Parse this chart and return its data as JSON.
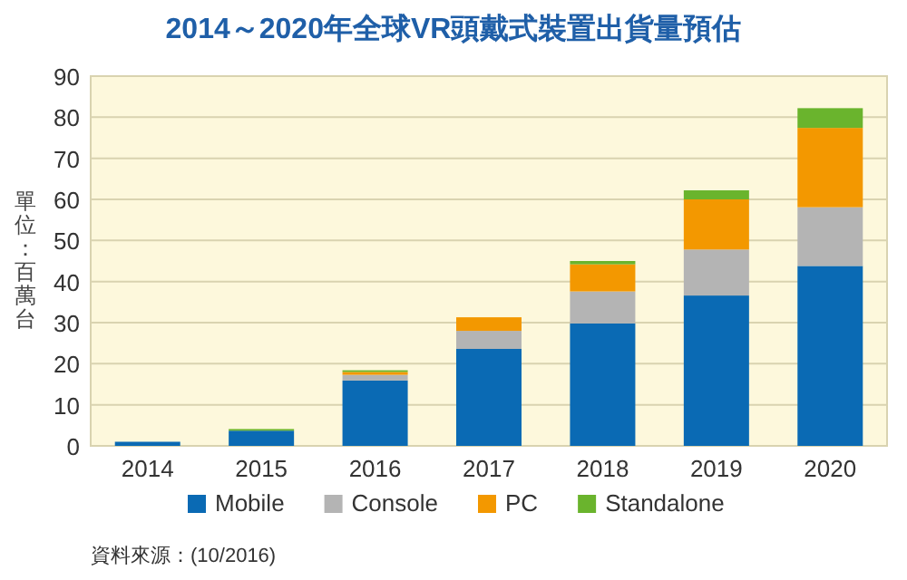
{
  "chart_data": {
    "type": "bar",
    "stacked": true,
    "title": "2014～2020年全球VR頭戴式裝置出貨量預估",
    "ylabel": "單位：百萬台",
    "categories": [
      "2014",
      "2015",
      "2016",
      "2017",
      "2018",
      "2019",
      "2020"
    ],
    "series": [
      {
        "name": "Mobile",
        "color": "#0a6ab4",
        "values": [
          1.0,
          3.7,
          15.9,
          23.6,
          29.8,
          36.6,
          43.8
        ]
      },
      {
        "name": "Console",
        "color": "#b4b4b4",
        "values": [
          0,
          0,
          1.4,
          4.4,
          7.8,
          11.2,
          14.3
        ]
      },
      {
        "name": "PC",
        "color": "#f39800",
        "values": [
          0,
          0,
          0.7,
          3.3,
          6.6,
          12.2,
          19.3
        ]
      },
      {
        "name": "Standalone",
        "color": "#6ab42d",
        "values": [
          0,
          0.4,
          0.4,
          0,
          0.8,
          2.2,
          4.8
        ]
      }
    ],
    "ylim": [
      0,
      90
    ],
    "yticks": [
      0,
      10,
      20,
      30,
      40,
      50,
      60,
      70,
      80,
      90
    ],
    "grid": "y",
    "legend": "bottom",
    "annotations": [
      "資料來源：(10/2016)"
    ]
  }
}
